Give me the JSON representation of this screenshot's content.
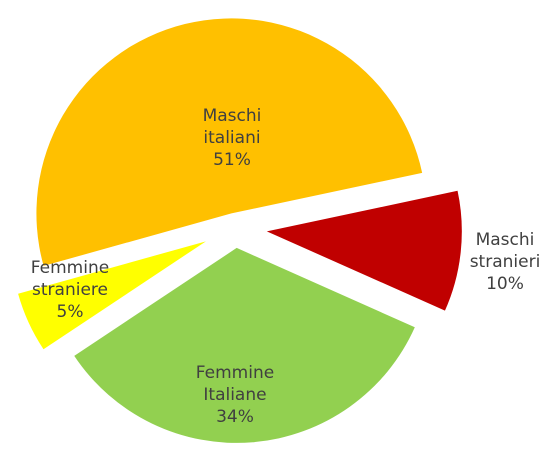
{
  "chart_data": {
    "type": "pie",
    "categories": [
      "Maschi italiani",
      "Maschi stranieri",
      "Femmine Italiane",
      "Femmine straniere"
    ],
    "values": [
      51,
      10,
      34,
      5
    ],
    "value_labels": [
      "51%",
      "10%",
      "34%",
      "5%"
    ],
    "colors": [
      "#FFC000",
      "#C00000",
      "#92D050",
      "#FFFF00"
    ]
  }
}
